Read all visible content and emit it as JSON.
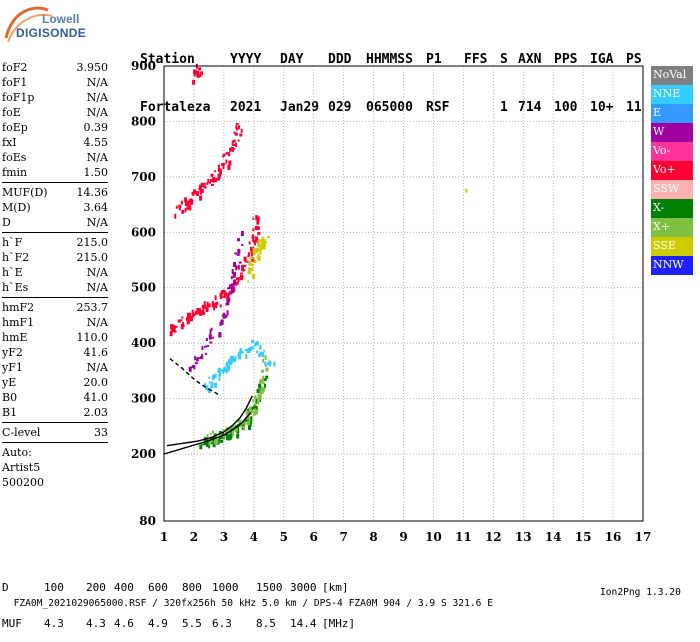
{
  "logo": {
    "line1": "Lowell",
    "line2": "DIGISONDE"
  },
  "header": {
    "labels": [
      "Station",
      "YYYY",
      "DAY",
      "DDD",
      "HHMMSS",
      "P1",
      "FFS",
      "S",
      "AXN",
      "PPS",
      "IGA",
      "PS"
    ],
    "values": [
      "Fortaleza",
      "2021",
      "Jan29",
      "029",
      "065000",
      "RSF",
      "1",
      "714",
      "100",
      "10+",
      "11"
    ]
  },
  "params": {
    "group1": [
      {
        "label": "foF2",
        "value": "3.950"
      },
      {
        "label": "foF1",
        "value": "N/A"
      },
      {
        "label": "foF1p",
        "value": "N/A"
      },
      {
        "label": "foE",
        "value": "N/A"
      },
      {
        "label": "foEp",
        "value": "0.39"
      },
      {
        "label": "fxI",
        "value": "4.55"
      },
      {
        "label": "foEs",
        "value": "N/A"
      },
      {
        "label": "fmin",
        "value": "1.50"
      }
    ],
    "group2": [
      {
        "label": "MUF(D)",
        "value": "14.36"
      },
      {
        "label": "M(D)",
        "value": "3.64"
      },
      {
        "label": "D",
        "value": "N/A"
      }
    ],
    "group3": [
      {
        "label": "h`F",
        "value": "215.0"
      },
      {
        "label": "h`F2",
        "value": "215.0"
      },
      {
        "label": "h`E",
        "value": "N/A"
      },
      {
        "label": "h`Es",
        "value": "N/A"
      }
    ],
    "group4": [
      {
        "label": "hmF2",
        "value": "253.7"
      },
      {
        "label": "hmF1",
        "value": "N/A"
      },
      {
        "label": "hmE",
        "value": "110.0"
      },
      {
        "label": "yF2",
        "value": "41.6"
      },
      {
        "label": "yF1",
        "value": "N/A"
      },
      {
        "label": "yE",
        "value": "20.0"
      },
      {
        "label": "B0",
        "value": "41.0"
      },
      {
        "label": "B1",
        "value": "2.03"
      }
    ],
    "clevel": {
      "label": "C-level",
      "value": "33"
    },
    "auto_lines": [
      "Auto:",
      "Artist5",
      "500200"
    ]
  },
  "legend": [
    {
      "label": "NoVal",
      "color": "#808080"
    },
    {
      "label": "NNE",
      "color": "#33ccff"
    },
    {
      "label": "E",
      "color": "#3399ff"
    },
    {
      "label": "W",
      "color": "#a000a0"
    },
    {
      "label": "Vo-",
      "color": "#ff3399"
    },
    {
      "label": "Vo+",
      "color": "#ff0033"
    },
    {
      "label": "SSW",
      "color": "#ffb0b0"
    },
    {
      "label": "X-",
      "color": "#008000"
    },
    {
      "label": "X+",
      "color": "#80c040"
    },
    {
      "label": "SSE",
      "color": "#cccc00"
    },
    {
      "label": "NNW",
      "color": "#2020ff"
    }
  ],
  "muf_table": {
    "row_d": {
      "label": "D",
      "values": [
        "100",
        "200",
        "400",
        "600",
        "800",
        "1000",
        "1500",
        "3000"
      ],
      "unit": "[km]"
    },
    "row_muf": {
      "label": "MUF",
      "values": [
        "4.3",
        "4.3",
        "4.6",
        "4.9",
        "5.5",
        "6.3",
        "8.5",
        "14.4"
      ],
      "unit": "[MHz]"
    }
  },
  "footer": {
    "left": "FZA0M_2021029065000.RSF / 320fx256h 50 kHz 5.0 km / DPS-4 FZA0M 904 / 3.9 S 321.6 E",
    "right": "Ion2Png 1.3.20"
  },
  "chart_data": {
    "type": "scatter",
    "x_ticks": [
      "1",
      "2",
      "3",
      "4",
      "5",
      "6",
      "7",
      "8",
      "9",
      "10",
      "11",
      "12",
      "13",
      "14",
      "15",
      "16",
      "17"
    ],
    "y_ticks": [
      "80",
      "200",
      "300",
      "400",
      "500",
      "600",
      "700",
      "800",
      "900"
    ],
    "xlim": [
      1,
      17
    ],
    "ylim": [
      80,
      900
    ],
    "grid": true,
    "profile_curve": {
      "x": [
        1.0,
        1.5,
        2.0,
        2.5,
        3.0,
        3.3,
        3.6,
        3.9
      ],
      "y": [
        200,
        208,
        216,
        224,
        234,
        244,
        256,
        275
      ]
    },
    "trace_curve": {
      "x": [
        1.1,
        1.6,
        2.1,
        2.6,
        3.0,
        3.3,
        3.55,
        3.75,
        3.95
      ],
      "y": [
        215,
        219,
        223,
        230,
        240,
        252,
        266,
        283,
        305
      ]
    },
    "dashed_curve": {
      "x": [
        1.2,
        1.6,
        2.0,
        2.4,
        2.9
      ],
      "y": [
        372,
        355,
        335,
        320,
        305
      ]
    },
    "series": [
      {
        "label": "Vo+",
        "x": [
          1.15,
          1.6,
          2.0,
          2.4,
          2.8,
          3.2,
          3.5,
          3.8,
          4.0,
          4.1
        ],
        "y": [
          425,
          440,
          455,
          468,
          480,
          500,
          525,
          560,
          600,
          640
        ]
      },
      {
        "label": "Vo+",
        "x": [
          1.45,
          1.8,
          2.2,
          2.6,
          3.0,
          3.3,
          3.5
        ],
        "y": [
          640,
          660,
          680,
          700,
          725,
          760,
          800
        ]
      },
      {
        "label": "Vo+",
        "x": [
          2.0,
          2.2
        ],
        "y": [
          880,
          900
        ]
      },
      {
        "label": "X-",
        "x": [
          2.2,
          2.6,
          3.0,
          3.4,
          3.7,
          4.0,
          4.3
        ],
        "y": [
          222,
          228,
          235,
          245,
          260,
          290,
          340
        ]
      },
      {
        "label": "X+",
        "x": [
          2.5,
          3.0,
          3.5,
          3.9,
          4.2,
          4.4
        ],
        "y": [
          230,
          240,
          255,
          280,
          320,
          380
        ]
      },
      {
        "label": "SSE",
        "x": [
          3.8,
          4.0,
          4.2,
          4.4
        ],
        "y": [
          520,
          560,
          580,
          590
        ]
      },
      {
        "label": "NNE",
        "x": [
          2.3,
          2.7,
          3.0,
          3.5,
          4.0,
          4.6
        ],
        "y": [
          320,
          340,
          360,
          380,
          400,
          360
        ]
      },
      {
        "label": "W",
        "x": [
          1.8,
          2.4,
          3.0,
          3.3,
          3.6
        ],
        "y": [
          350,
          400,
          450,
          520,
          600
        ]
      },
      {
        "label": "SSE",
        "x": [
          11.1
        ],
        "y": [
          675
        ]
      }
    ]
  }
}
